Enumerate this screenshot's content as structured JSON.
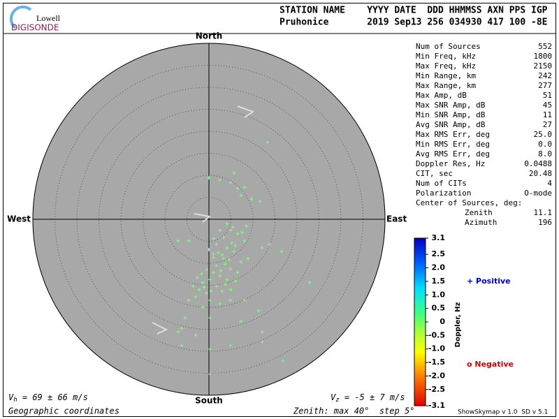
{
  "chart_data": {
    "type": "skymap",
    "logo": {
      "top": "Lowell",
      "bottom": "DIGISONDE"
    },
    "header": {
      "labels": "STATION NAME    YYYY DATE  DDD HHMMSS AXN PPS IGP",
      "values": "Pruhonice       2019 Sep13 256 034930 417 100 -8E"
    },
    "compass": {
      "north": "North",
      "south": "South",
      "east": "East",
      "west": "West"
    },
    "rlim": [
      0,
      40
    ],
    "rticks": [
      5,
      10,
      15,
      20,
      25,
      30,
      35,
      40
    ],
    "point_color": "#80ff80",
    "sources": {
      "x": [
        0.0,
        2.5,
        5.7,
        4.9,
        6.5,
        8.1,
        7.3,
        9.7,
        11.6,
        13.3,
        4.1,
        4.9,
        3.3,
        6.5,
        1.7,
        4.1,
        5.7,
        8.1,
        7.3,
        3.3,
        1.7,
        1.0,
        0.2,
        2.5,
        -1.4,
        -2.2,
        -0.6,
        -3.0,
        -4.6,
        0.2,
        1.7,
        4.1,
        4.9,
        6.5,
        8.9,
        12.1,
        13.7,
        16.5,
        22.9,
        -1.4,
        0.2,
        -5.4,
        -6.2,
        -7.0,
        -3.0,
        -6.2,
        0.2,
        4.9,
        7.3,
        11.3,
        12.1,
        16.8,
        0.2,
        12.1,
        2.5,
        4.9,
        8.1,
        -4.6,
        -7.0,
        1.0,
        1.0,
        3.0,
        3.7,
        2.1,
        0.0,
        2.7,
        4.6,
        5.2,
        1.1,
        -0.5,
        -1.7,
        -2.7,
        -3.6,
        -1.1,
        0.5,
        3.0,
        3.7,
        6.0,
        7.5,
        5.5,
        2.5,
        8.5,
        6.0,
        5.0
      ],
      "y": [
        9.4,
        8.9,
        10.5,
        8.3,
        7.0,
        7.3,
        5.4,
        4.6,
        4.1,
        17.5,
        -1.0,
        -2.5,
        -4.1,
        -3.3,
        -5.7,
        -6.5,
        -7.3,
        -4.9,
        -9.7,
        -8.9,
        -10.5,
        -12.1,
        -13.7,
        -12.9,
        -14.4,
        -16.0,
        -16.8,
        -17.6,
        -18.4,
        -18.4,
        -15.2,
        -13.7,
        -11.3,
        -12.1,
        -8.9,
        -6.5,
        -5.7,
        -7.3,
        -14.4,
        -20.0,
        -22.4,
        -22.4,
        -24.8,
        -25.6,
        -26.3,
        -28.7,
        -29.5,
        -28.7,
        -23.2,
        -20.8,
        -25.6,
        -32.2,
        -35.2,
        -27.9,
        -19.2,
        -18.4,
        -18.4,
        -4.9,
        -4.9,
        -7.9,
        -8.7,
        -8.1,
        -10.2,
        -7.6,
        -6.9,
        -11.7,
        -9.2,
        -5.4,
        -4.4,
        -11.4,
        -12.4,
        -13.3,
        -15.2,
        -15.4,
        -16.3,
        -16.3,
        -14.8,
        -6.0,
        -3.0,
        -1.8,
        -2.5,
        -1.5,
        -14.0,
        -16.0
      ]
    },
    "stats": [
      [
        "Num of Sources",
        "552"
      ],
      [
        "Min Freq, kHz",
        "1800"
      ],
      [
        "Max Freq, kHz",
        "2150"
      ],
      [
        "Min Range, km",
        "242"
      ],
      [
        "Max Range, km",
        "277"
      ],
      [
        "Max Amp, dB",
        "51"
      ],
      [
        "Max SNR Amp, dB",
        "45"
      ],
      [
        "Min SNR Amp, dB",
        "11"
      ],
      [
        "Avg SNR Amp, dB",
        "27"
      ],
      [
        "Max RMS Err, deg",
        "25.0"
      ],
      [
        "Min RMS Err, deg",
        "0.0"
      ],
      [
        "Avg RMS Err, deg",
        "8.0"
      ],
      [
        "Doppler Res, Hz",
        "0.0488"
      ],
      [
        "CIT, sec",
        "20.48"
      ],
      [
        "Num of CITs",
        "4"
      ],
      [
        "Polarization",
        "O-mode"
      ]
    ],
    "center_title": "Center of Sources, deg:",
    "center": [
      [
        "Zenith",
        "11.1"
      ],
      [
        "Azimuth",
        "196"
      ]
    ],
    "colorbar": {
      "label": "Doppler, Hz",
      "clim": [
        -3.1,
        3.1
      ],
      "ticks": [
        3.1,
        2.5,
        {
          "value": 2,
          "label": "2.0"
        },
        1.5,
        {
          "value": 1,
          "label": "1.0"
        },
        0.5,
        0,
        -0.5,
        {
          "value": -1,
          "label": "-1.0"
        },
        -1.5,
        {
          "value": -2,
          "label": "-2.0"
        },
        -2.5,
        -3.1
      ]
    },
    "legend": {
      "positive": "+ Positive",
      "negative": "o Negative"
    },
    "footer": {
      "vh": {
        "symbol": "V",
        "sub": "h",
        "text": " = 69 ± 66 m/s"
      },
      "vz": {
        "symbol": "V",
        "sub": "z",
        "text": " = -5 ± 7 m/s"
      },
      "coords": "Geographic coordinates",
      "zenith": "Zenith: max 40°  step 5°",
      "version": "ShowSkymap v 1.0  SD v 5.1"
    }
  }
}
